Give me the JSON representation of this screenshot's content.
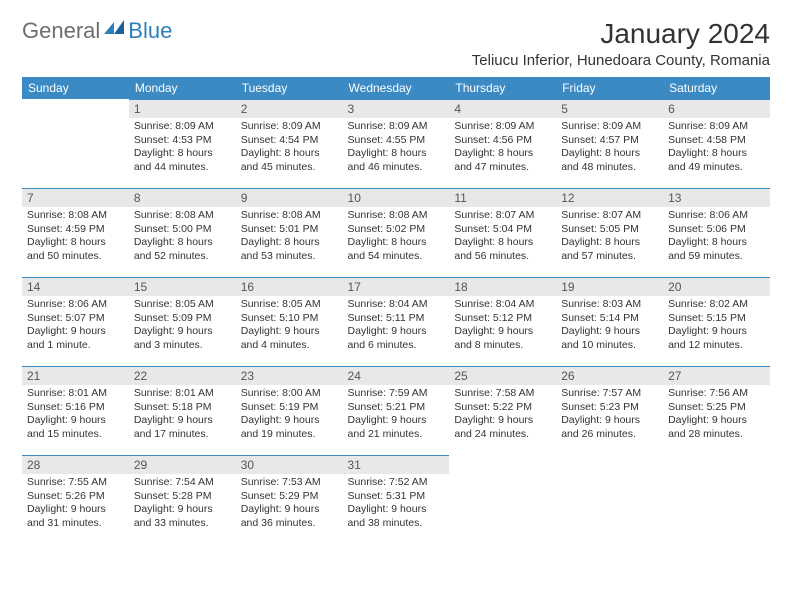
{
  "logo": {
    "text_general": "General",
    "text_blue": "Blue"
  },
  "title": "January 2024",
  "location": "Teliucu Inferior, Hunedoara County, Romania",
  "colors": {
    "header_bg": "#3b8ac4",
    "header_text": "#ffffff",
    "daynum_bg": "#e8e8e8",
    "border": "#3b8ac4",
    "body_text": "#333333",
    "logo_grey": "#6e6e6e",
    "logo_blue": "#2a7fbf"
  },
  "weekdays": [
    "Sunday",
    "Monday",
    "Tuesday",
    "Wednesday",
    "Thursday",
    "Friday",
    "Saturday"
  ],
  "weeks": [
    [
      null,
      {
        "n": "1",
        "sunrise": "Sunrise: 8:09 AM",
        "sunset": "Sunset: 4:53 PM",
        "daylight": "Daylight: 8 hours and 44 minutes."
      },
      {
        "n": "2",
        "sunrise": "Sunrise: 8:09 AM",
        "sunset": "Sunset: 4:54 PM",
        "daylight": "Daylight: 8 hours and 45 minutes."
      },
      {
        "n": "3",
        "sunrise": "Sunrise: 8:09 AM",
        "sunset": "Sunset: 4:55 PM",
        "daylight": "Daylight: 8 hours and 46 minutes."
      },
      {
        "n": "4",
        "sunrise": "Sunrise: 8:09 AM",
        "sunset": "Sunset: 4:56 PM",
        "daylight": "Daylight: 8 hours and 47 minutes."
      },
      {
        "n": "5",
        "sunrise": "Sunrise: 8:09 AM",
        "sunset": "Sunset: 4:57 PM",
        "daylight": "Daylight: 8 hours and 48 minutes."
      },
      {
        "n": "6",
        "sunrise": "Sunrise: 8:09 AM",
        "sunset": "Sunset: 4:58 PM",
        "daylight": "Daylight: 8 hours and 49 minutes."
      }
    ],
    [
      {
        "n": "7",
        "sunrise": "Sunrise: 8:08 AM",
        "sunset": "Sunset: 4:59 PM",
        "daylight": "Daylight: 8 hours and 50 minutes."
      },
      {
        "n": "8",
        "sunrise": "Sunrise: 8:08 AM",
        "sunset": "Sunset: 5:00 PM",
        "daylight": "Daylight: 8 hours and 52 minutes."
      },
      {
        "n": "9",
        "sunrise": "Sunrise: 8:08 AM",
        "sunset": "Sunset: 5:01 PM",
        "daylight": "Daylight: 8 hours and 53 minutes."
      },
      {
        "n": "10",
        "sunrise": "Sunrise: 8:08 AM",
        "sunset": "Sunset: 5:02 PM",
        "daylight": "Daylight: 8 hours and 54 minutes."
      },
      {
        "n": "11",
        "sunrise": "Sunrise: 8:07 AM",
        "sunset": "Sunset: 5:04 PM",
        "daylight": "Daylight: 8 hours and 56 minutes."
      },
      {
        "n": "12",
        "sunrise": "Sunrise: 8:07 AM",
        "sunset": "Sunset: 5:05 PM",
        "daylight": "Daylight: 8 hours and 57 minutes."
      },
      {
        "n": "13",
        "sunrise": "Sunrise: 8:06 AM",
        "sunset": "Sunset: 5:06 PM",
        "daylight": "Daylight: 8 hours and 59 minutes."
      }
    ],
    [
      {
        "n": "14",
        "sunrise": "Sunrise: 8:06 AM",
        "sunset": "Sunset: 5:07 PM",
        "daylight": "Daylight: 9 hours and 1 minute."
      },
      {
        "n": "15",
        "sunrise": "Sunrise: 8:05 AM",
        "sunset": "Sunset: 5:09 PM",
        "daylight": "Daylight: 9 hours and 3 minutes."
      },
      {
        "n": "16",
        "sunrise": "Sunrise: 8:05 AM",
        "sunset": "Sunset: 5:10 PM",
        "daylight": "Daylight: 9 hours and 4 minutes."
      },
      {
        "n": "17",
        "sunrise": "Sunrise: 8:04 AM",
        "sunset": "Sunset: 5:11 PM",
        "daylight": "Daylight: 9 hours and 6 minutes."
      },
      {
        "n": "18",
        "sunrise": "Sunrise: 8:04 AM",
        "sunset": "Sunset: 5:12 PM",
        "daylight": "Daylight: 9 hours and 8 minutes."
      },
      {
        "n": "19",
        "sunrise": "Sunrise: 8:03 AM",
        "sunset": "Sunset: 5:14 PM",
        "daylight": "Daylight: 9 hours and 10 minutes."
      },
      {
        "n": "20",
        "sunrise": "Sunrise: 8:02 AM",
        "sunset": "Sunset: 5:15 PM",
        "daylight": "Daylight: 9 hours and 12 minutes."
      }
    ],
    [
      {
        "n": "21",
        "sunrise": "Sunrise: 8:01 AM",
        "sunset": "Sunset: 5:16 PM",
        "daylight": "Daylight: 9 hours and 15 minutes."
      },
      {
        "n": "22",
        "sunrise": "Sunrise: 8:01 AM",
        "sunset": "Sunset: 5:18 PM",
        "daylight": "Daylight: 9 hours and 17 minutes."
      },
      {
        "n": "23",
        "sunrise": "Sunrise: 8:00 AM",
        "sunset": "Sunset: 5:19 PM",
        "daylight": "Daylight: 9 hours and 19 minutes."
      },
      {
        "n": "24",
        "sunrise": "Sunrise: 7:59 AM",
        "sunset": "Sunset: 5:21 PM",
        "daylight": "Daylight: 9 hours and 21 minutes."
      },
      {
        "n": "25",
        "sunrise": "Sunrise: 7:58 AM",
        "sunset": "Sunset: 5:22 PM",
        "daylight": "Daylight: 9 hours and 24 minutes."
      },
      {
        "n": "26",
        "sunrise": "Sunrise: 7:57 AM",
        "sunset": "Sunset: 5:23 PM",
        "daylight": "Daylight: 9 hours and 26 minutes."
      },
      {
        "n": "27",
        "sunrise": "Sunrise: 7:56 AM",
        "sunset": "Sunset: 5:25 PM",
        "daylight": "Daylight: 9 hours and 28 minutes."
      }
    ],
    [
      {
        "n": "28",
        "sunrise": "Sunrise: 7:55 AM",
        "sunset": "Sunset: 5:26 PM",
        "daylight": "Daylight: 9 hours and 31 minutes."
      },
      {
        "n": "29",
        "sunrise": "Sunrise: 7:54 AM",
        "sunset": "Sunset: 5:28 PM",
        "daylight": "Daylight: 9 hours and 33 minutes."
      },
      {
        "n": "30",
        "sunrise": "Sunrise: 7:53 AM",
        "sunset": "Sunset: 5:29 PM",
        "daylight": "Daylight: 9 hours and 36 minutes."
      },
      {
        "n": "31",
        "sunrise": "Sunrise: 7:52 AM",
        "sunset": "Sunset: 5:31 PM",
        "daylight": "Daylight: 9 hours and 38 minutes."
      },
      null,
      null,
      null
    ]
  ]
}
